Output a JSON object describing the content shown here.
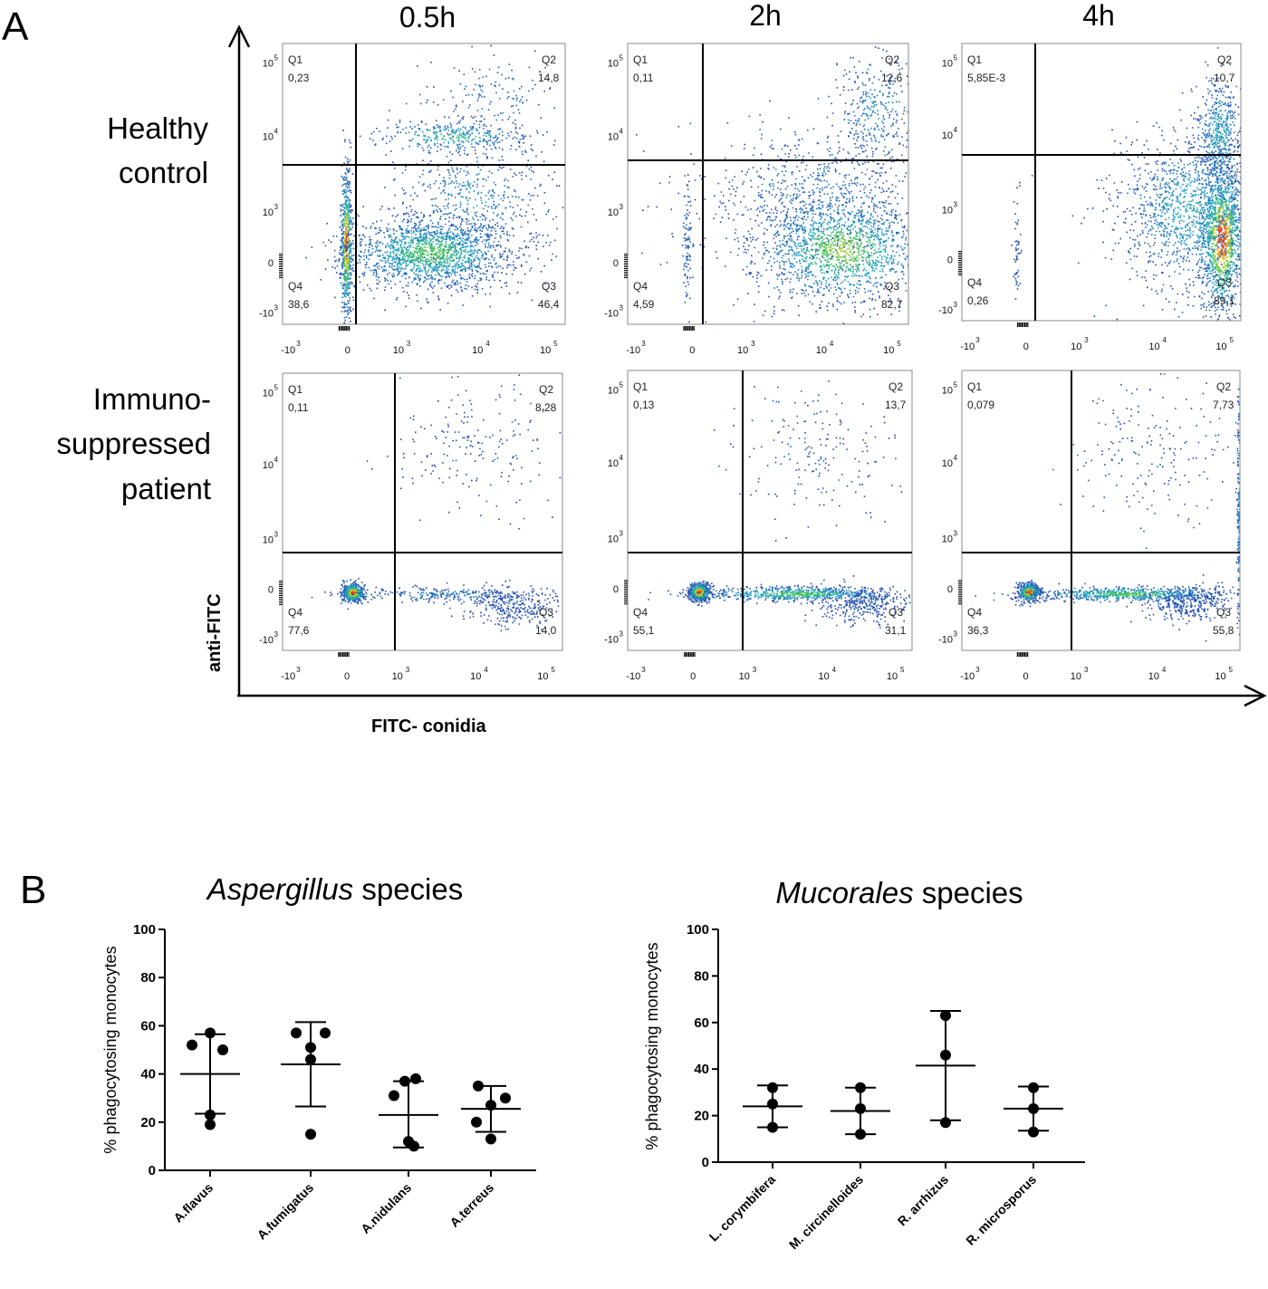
{
  "panel_a": {
    "letter": "A",
    "columns": [
      "0.5h",
      "2h",
      "4h"
    ],
    "rows": [
      {
        "label_lines": [
          "Healthy",
          "control"
        ]
      },
      {
        "label_lines": [
          "Immuno-",
          "suppressed",
          "patient"
        ]
      }
    ],
    "y_axis_title": "anti-FITC",
    "x_axis_title": "FITC- conidia",
    "quadrant_names": [
      "Q1",
      "Q2",
      "Q3",
      "Q4"
    ],
    "x_ticks": [
      {
        "base": "-10",
        "exp": "3"
      },
      {
        "base": "0",
        "exp": ""
      },
      {
        "base": "10",
        "exp": "3"
      },
      {
        "base": "10",
        "exp": "4"
      },
      {
        "base": "10",
        "exp": "5"
      }
    ],
    "y_ticks": [
      {
        "base": "10",
        "exp": "5"
      },
      {
        "base": "10",
        "exp": "4"
      },
      {
        "base": "10",
        "exp": "3"
      },
      {
        "base": "0",
        "exp": ""
      },
      {
        "base": "-10",
        "exp": "3"
      }
    ],
    "plots": [
      {
        "row": 0,
        "col": 0,
        "q1": "0,23",
        "q2": "14,8",
        "q3": "46,4",
        "q4": "38,6"
      },
      {
        "row": 0,
        "col": 1,
        "q1": "0,11",
        "q2": "12,6",
        "q3": "82,7",
        "q4": "4,59"
      },
      {
        "row": 0,
        "col": 2,
        "q1": "5,85E-3",
        "q2": "10,7",
        "q3": "89,1",
        "q4": "0,26"
      },
      {
        "row": 1,
        "col": 0,
        "q1": "0,11",
        "q2": "8,28",
        "q3": "14,0",
        "q4": "77,6"
      },
      {
        "row": 1,
        "col": 1,
        "q1": "0,13",
        "q2": "13,7",
        "q3": "31,1",
        "q4": "55,1"
      },
      {
        "row": 1,
        "col": 2,
        "q1": "0,079",
        "q2": "7,73",
        "q3": "55,8",
        "q4": "36,3"
      }
    ]
  },
  "chart_data": [
    {
      "type": "scatter",
      "title_italic": "Aspergillus",
      "title_rest": " species",
      "ylabel": "% phagocytosing monocytes",
      "ylim": [
        0,
        100
      ],
      "yticks": [
        0,
        20,
        40,
        60,
        80,
        100
      ],
      "categories": [
        "A.flavus",
        "A.fumigatus",
        "A.nidulans",
        "A.terreus"
      ],
      "points": [
        [
          57,
          52,
          50,
          23,
          19
        ],
        [
          57,
          57,
          51,
          46,
          15
        ],
        [
          38,
          37,
          31,
          12,
          10
        ],
        [
          35,
          30,
          27,
          20,
          13
        ]
      ],
      "mean": [
        40,
        44,
        23,
        25.5
      ],
      "error_low": [
        23.5,
        26.5,
        9.5,
        16
      ],
      "error_high": [
        56.5,
        61.5,
        37,
        35
      ]
    },
    {
      "type": "scatter",
      "title_italic": "Mucorales",
      "title_rest": " species",
      "ylabel": "% phagocytosing monocytes",
      "ylim": [
        0,
        100
      ],
      "yticks": [
        0,
        20,
        40,
        60,
        80,
        100
      ],
      "categories": [
        "L. corymbifera",
        "M. circinelloides",
        "R. arrhizus",
        "R. microsporus"
      ],
      "points": [
        [
          32,
          25,
          15
        ],
        [
          32,
          23,
          12
        ],
        [
          63,
          46,
          17
        ],
        [
          32,
          23,
          13
        ]
      ],
      "mean": [
        24,
        22,
        41.5,
        23
      ],
      "error_low": [
        15,
        12,
        18,
        13.5
      ],
      "error_high": [
        33,
        32,
        65,
        32.5
      ]
    }
  ],
  "panel_b": {
    "letter": "B"
  }
}
